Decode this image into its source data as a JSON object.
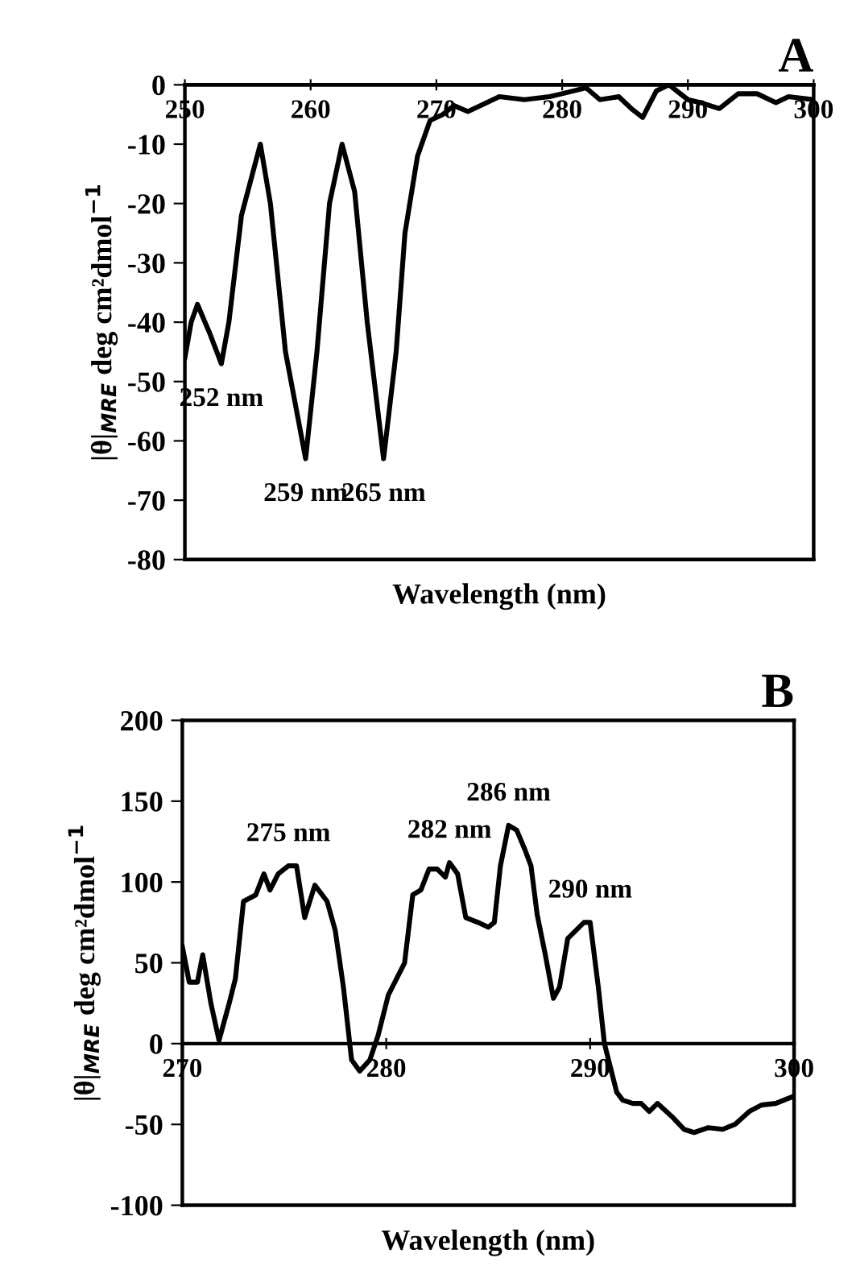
{
  "chart_data": [
    {
      "type": "line",
      "title": "A",
      "xlabel": "Wavelength (nm)",
      "ylabel": "|θ|$_{MRE}$ deg cm²dmol$^{−1}$",
      "xlim": [
        250,
        300
      ],
      "xticks": [
        250,
        260,
        270,
        280,
        290,
        300
      ],
      "ylim": [
        -80,
        0
      ],
      "yticks": [
        -80,
        -70,
        -60,
        -50,
        -40,
        -30,
        -20,
        -10,
        0
      ],
      "grid": false,
      "legend": false,
      "marker": "none",
      "line_style": "solid",
      "series": [
        {
          "color": "#000000",
          "x": [
            250,
            250.5,
            251.0,
            252.0,
            252.9,
            253.5,
            254.5,
            256.0,
            256.8,
            258,
            259.6,
            260.5,
            261.5,
            262.5,
            263.5,
            264.5,
            265.8,
            266.8,
            267.5,
            268.5,
            269.5,
            270.5,
            271.4,
            272.5,
            274,
            275,
            277,
            279,
            280,
            281.9,
            283,
            284.5,
            285.5,
            286.4,
            287.5,
            288.5,
            290,
            291,
            292.5,
            294,
            295.5,
            297,
            298,
            300
          ],
          "values": [
            -46,
            -40,
            -37,
            -42,
            -47,
            -40,
            -22,
            -10,
            -20,
            -45,
            -63,
            -45,
            -20,
            -10,
            -18,
            -40,
            -63,
            -45,
            -25,
            -12,
            -6,
            -5,
            -3.5,
            -4.5,
            -3,
            -2,
            -2.5,
            -2,
            -1.5,
            -0.5,
            -2.5,
            -2,
            -4,
            -5.5,
            -1,
            0,
            -2.5,
            -3,
            -4,
            -1.5,
            -1.5,
            -3,
            -2,
            -2.5
          ]
        }
      ],
      "annotations": [
        {
          "text": "252 nm",
          "x": 252.9,
          "y": -47
        },
        {
          "text": "259 nm",
          "x": 259.6,
          "y": -63
        },
        {
          "text": "265 nm",
          "x": 265.8,
          "y": -63
        }
      ]
    },
    {
      "type": "line",
      "title": "B",
      "xlabel": "Wavelength (nm)",
      "ylabel": "|θ|$_{MRE}$ deg cm²dmol$^{−1}$",
      "xlim": [
        270,
        300
      ],
      "xticks": [
        270,
        280,
        290,
        300
      ],
      "ylim": [
        -100,
        200
      ],
      "yticks": [
        -100,
        -50,
        0,
        50,
        100,
        150,
        200
      ],
      "grid": false,
      "legend": false,
      "marker": "none",
      "line_style": "solid",
      "series": [
        {
          "color": "#000000",
          "x": [
            270,
            270.34,
            270.74,
            271.0,
            271.4,
            271.8,
            272.3,
            272.6,
            273.0,
            273.6,
            274.0,
            274.3,
            274.7,
            275.2,
            275.6,
            276.0,
            276.5,
            277.1,
            277.5,
            277.9,
            278.3,
            278.7,
            279.2,
            279.6,
            280.1,
            280.5,
            280.9,
            281.3,
            281.7,
            282.1,
            282.5,
            282.9,
            283.1,
            283.5,
            283.9,
            284.5,
            285.0,
            285.3,
            285.6,
            286.0,
            286.4,
            286.8,
            287.1,
            287.4,
            287.8,
            288.2,
            288.5,
            288.9,
            289.3,
            289.7,
            290.0,
            290.4,
            290.7,
            290.9,
            291.3,
            291.6,
            292.1,
            292.5,
            292.9,
            293.3,
            294.0,
            294.6,
            295.1,
            295.8,
            296.5,
            297.1,
            297.8,
            298.4,
            299.1,
            299.9
          ],
          "values": [
            60,
            38,
            38,
            55,
            25,
            2,
            25,
            40,
            88,
            92,
            105,
            95,
            105,
            110,
            110,
            78,
            98,
            88,
            70,
            35,
            -10,
            -17,
            -10,
            5,
            30,
            40,
            50,
            92,
            95,
            108,
            108,
            103,
            112,
            105,
            78,
            75,
            72,
            75,
            110,
            135,
            132,
            120,
            110,
            80,
            55,
            28,
            35,
            65,
            70,
            75,
            75,
            35,
            0,
            -10,
            -30,
            -35,
            -37,
            -37,
            -42,
            -37,
            -45,
            -53,
            -55,
            -52,
            -53,
            -50,
            -42,
            -38,
            -37,
            -33
          ]
        }
      ],
      "annotations": [
        {
          "text": "275 nm",
          "x": 275.2,
          "y": 110
        },
        {
          "text": "282 nm",
          "x": 283.1,
          "y": 112
        },
        {
          "text": "286 nm",
          "x": 286.0,
          "y": 135
        },
        {
          "text": "290 nm",
          "x": 290.0,
          "y": 75
        }
      ]
    }
  ]
}
